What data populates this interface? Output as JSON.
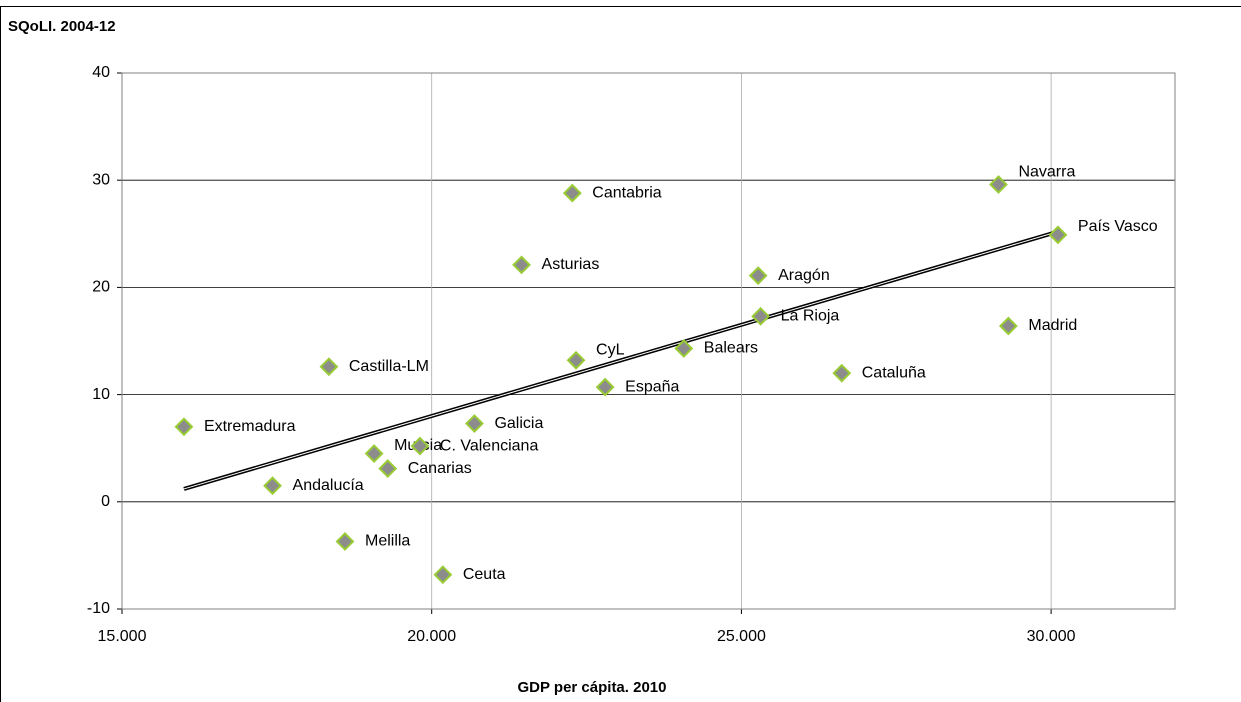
{
  "chart_data": {
    "type": "scatter",
    "title": "SQoLI. 2004-12",
    "xlabel": "GDP per cápita. 2010",
    "labels": [
      "Extremadura",
      "Andalucía",
      "Melilla",
      "Castilla-LM",
      "Murcia",
      "Canarias",
      "C. Valenciana",
      "Ceuta",
      "Galicia",
      "Asturias",
      "Cantabria",
      "CyL",
      "España",
      "Balears",
      "Aragón",
      "La Rioja",
      "Cataluña",
      "Navarra",
      "País Vasco",
      "Madrid"
    ],
    "x": [
      16000,
      17430,
      18600,
      18340,
      19070,
      19290,
      19810,
      20180,
      20690,
      21450,
      22270,
      22330,
      22800,
      24070,
      25270,
      25310,
      26620,
      29150,
      30110,
      29310
    ],
    "values": [
      7.0,
      1.5,
      -3.7,
      12.6,
      4.5,
      3.1,
      5.2,
      -6.8,
      7.3,
      22.1,
      28.8,
      13.2,
      10.7,
      14.3,
      21.1,
      17.3,
      12.0,
      29.6,
      24.9,
      16.4
    ],
    "color": "#8c8c8c",
    "edgecolor": "#99cc33",
    "trendline": {
      "x": [
        16000,
        30110
      ],
      "y": [
        1.2,
        25.2
      ],
      "color": "#000000"
    },
    "xlim": [
      15000,
      32000
    ],
    "ylim": [
      -10,
      40
    ],
    "xticks": [
      {
        "value": 15000,
        "label": "15.000"
      },
      {
        "value": 20000,
        "label": "20.000"
      },
      {
        "value": 25000,
        "label": "25.000"
      },
      {
        "value": 30000,
        "label": "30.000"
      }
    ],
    "yticks": [
      -10,
      0,
      10,
      20,
      30,
      40
    ],
    "grid": true
  }
}
